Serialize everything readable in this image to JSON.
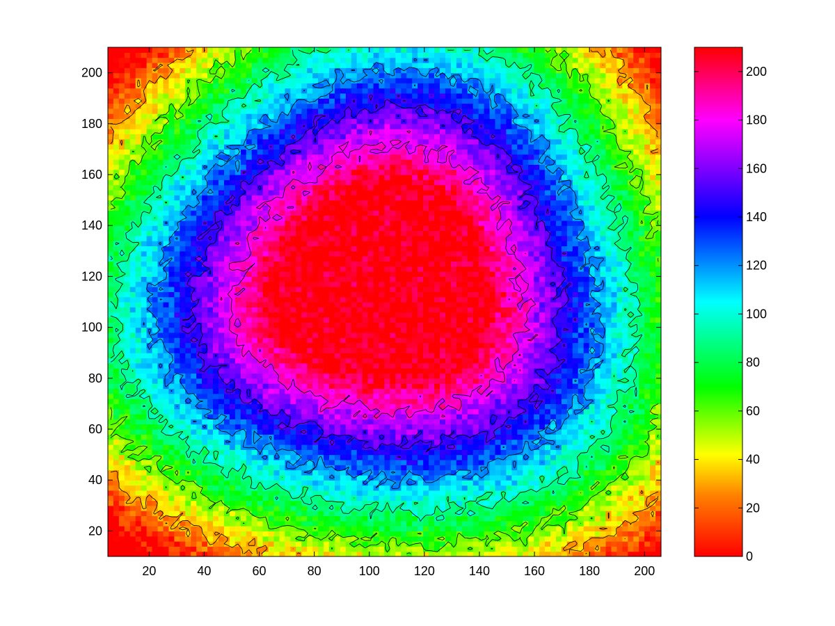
{
  "chart_data": {
    "type": "heatmap",
    "title": "",
    "xlabel": "",
    "ylabel": "",
    "xlim": [
      5,
      206
    ],
    "ylim": [
      10,
      210
    ],
    "x_ticks": [
      20,
      40,
      60,
      80,
      100,
      120,
      140,
      160,
      180,
      200
    ],
    "y_ticks": [
      20,
      40,
      60,
      80,
      100,
      120,
      140,
      160,
      180,
      200
    ],
    "colorbar": {
      "limits": [
        0,
        210
      ],
      "ticks": [
        0,
        20,
        40,
        60,
        80,
        100,
        120,
        140,
        160,
        180,
        200
      ],
      "colormap_stops": [
        {
          "value": 0,
          "color": "#ff0000"
        },
        {
          "value": 25,
          "color": "#ff8000"
        },
        {
          "value": 42,
          "color": "#ffff00"
        },
        {
          "value": 70,
          "color": "#00ff00"
        },
        {
          "value": 105,
          "color": "#00ffff"
        },
        {
          "value": 140,
          "color": "#0000ff"
        },
        {
          "value": 180,
          "color": "#ff00ff"
        },
        {
          "value": 210,
          "color": "#ff0000"
        }
      ]
    },
    "peak_center": [
      105,
      117
    ],
    "peak_value": 210,
    "contour_levels": [
      30,
      60,
      90,
      120,
      150,
      180
    ],
    "grid": false,
    "legend": "colorbar-right"
  }
}
